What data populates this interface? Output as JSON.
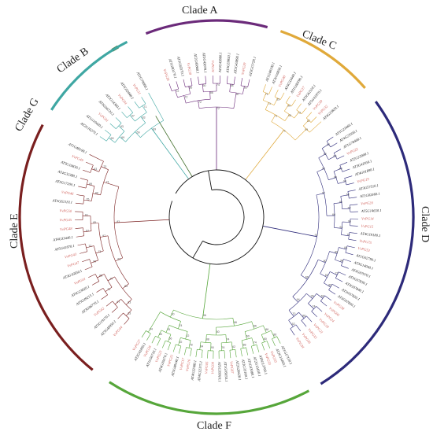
{
  "colors": {
    "clade_a": "#6b2a7a",
    "clade_b": "#3fa7a3",
    "clade_c": "#e0a93a",
    "clade_d": "#2d2a7a",
    "clade_e": "#7a1f1f",
    "clade_f": "#56a63a",
    "clade_g": "#3c6b25",
    "arabidopsis_label": "#222222",
    "vp_label": "#d0605a"
  },
  "clades": [
    {
      "key": "clade_g",
      "label": "Clade G",
      "leaves": []
    },
    {
      "key": "clade_b",
      "label": "Clade B",
      "leaves": [
        "AT2G16270.1",
        "AT1G10420.1",
        "VvPG01",
        "AT3G06720.1",
        "AT2G14360.1",
        "VvPG04",
        "AT3G02840.1",
        "VvPG11",
        "AT1G70090.1"
      ]
    },
    {
      "key": "clade_a",
      "label": "Clade A",
      "leaves": [
        "VvPG28",
        "AT1G80170.1",
        "AT1G65570.1",
        "VvPG30",
        "AT2G43860.1",
        "AT2G43870.1",
        "VvPG31",
        "AT2G43880.1",
        "AT3G59850.1",
        "AT2G43890.1",
        "VvPG29",
        "AT3G15720.1"
      ]
    },
    {
      "key": "clade_c",
      "label": "Clade C",
      "leaves": [
        "AT1G48100.1",
        "AT3G16850.1",
        "VvPG40",
        "AT4G33440.1",
        "AT1G60590.1",
        "VvPG37",
        "AT3G62110.1",
        "AT5G41870.1",
        "VvPG39",
        "VvPG32",
        "AT4G23820.1"
      ]
    },
    {
      "key": "clade_d",
      "label": "Clade D",
      "leaves": [
        "AT1G23460.1",
        "AT4G23500.1",
        "AT1G78400.1",
        "VvPG22",
        "AT2G23900.1",
        "AT3G42950.1",
        "AT4G01890.1",
        "VvPG19",
        "AT3G57510.1",
        "AT1G02460.1",
        "VvPG20",
        "AT5G14650.1",
        "VvPG14",
        "VvPG15",
        "AT4G18180.1",
        "VvPG75",
        "VvPG52",
        "AT1G02790.1",
        "AT3G14040.1",
        "AT3G07970.1",
        "AT3G07830.1",
        "AT3G07840.1",
        "AT3G07820.1",
        "AT3G07850.1",
        "VvPG38",
        "VvPG06",
        "VvPG24",
        "VvPG18",
        "VvPG21",
        "VvPG35",
        "VvPG36",
        "VvPG34"
      ]
    },
    {
      "key": "clade_f",
      "label": "Clade F",
      "leaves": [
        "AT1G17150.1",
        "AT2G15460.1",
        "VvPG03",
        "VvPG33",
        "AT4G13760.1",
        "AT2G15450.1",
        "AT1G43080.1",
        "AT2G33160.1",
        "AT2G26620.1",
        "VvPG07",
        "AT1G05650.1",
        "AT5G39910.1",
        "VvPG09",
        "VvPG05",
        "AT4G32375.1",
        "AT4G32380.1",
        "VvPG16",
        "VvPG17",
        "AT5G48140.1",
        "VvPG25",
        "AT4G35670.1",
        "VvPG23",
        "AT1G56710.1",
        "VvPG26",
        "AT2G41850.1",
        "VvPG27"
      ]
    },
    {
      "key": "clade_e",
      "label": "Clade E",
      "leaves": [
        "VvPG44",
        "AT3G48950.1",
        "AT1G19170.1",
        "VvPG42",
        "AT3G06770.1",
        "AT5G49215.1",
        "AT4G23820.1",
        "VvPG41",
        "AT3G16850.1",
        "VvPG47",
        "VvPG43",
        "AT5G41870.1",
        "AT4G33440.1",
        "VvPG48",
        "VvPG45",
        "VvPG50",
        "AT3G62110.1",
        "VvPG46",
        "AT5G17200.1",
        "AT4G32380.1",
        "AT3G10830.1",
        "VvPG49",
        "AT1G48100.1"
      ]
    }
  ]
}
